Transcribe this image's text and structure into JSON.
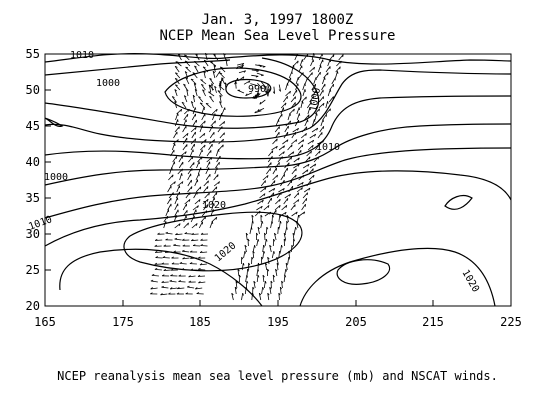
{
  "title": "Jan. 3, 1997   1800Z",
  "subtitle": "NCEP Mean Sea Level Pressure",
  "caption": "NCEP reanalysis mean sea level pressure (mb) and NSCAT winds.",
  "x_ticks": [
    "165",
    "175",
    "185",
    "195",
    "205",
    "215",
    "225"
  ],
  "y_ticks": [
    "20",
    "25",
    "30",
    "35",
    "40",
    "45",
    "50",
    "55"
  ],
  "contour_labels": [
    "1010",
    "1000",
    "990",
    "1000",
    "1010",
    "1000",
    "1010",
    "1020",
    "1020",
    "1020"
  ],
  "colors": {
    "line": "#000000",
    "background": "#ffffff"
  }
}
